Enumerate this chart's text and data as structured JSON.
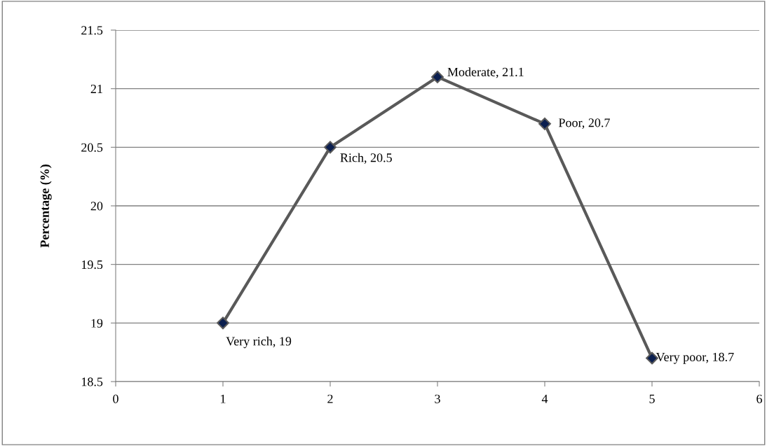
{
  "chart_data": {
    "type": "line",
    "ylabel": "Percentage (%)",
    "x": [
      1,
      2,
      3,
      4,
      5
    ],
    "series": [
      {
        "color": "#595959",
        "values": [
          19,
          20.5,
          21.1,
          20.7,
          18.7
        ]
      }
    ],
    "xlim": [
      0,
      6
    ],
    "xticks": [
      0,
      1,
      2,
      3,
      4,
      5,
      6
    ],
    "ylim": [
      18.5,
      21.5
    ],
    "yticks": [
      18.5,
      19,
      19.5,
      20,
      20.5,
      21,
      21.5
    ],
    "grid": "y",
    "marker": "diamond",
    "line_style": "solid",
    "annotations": [
      {
        "text": "Very rich, 19",
        "x": 1,
        "y": 19
      },
      {
        "text": "Rich, 20.5",
        "x": 2,
        "y": 20.5
      },
      {
        "text": "Moderate, 21.1",
        "x": 3,
        "y": 21.1
      },
      {
        "text": "Poor, 20.7",
        "x": 4,
        "y": 20.7
      },
      {
        "text": "Very poor, 18.7",
        "x": 5,
        "y": 18.7
      }
    ]
  }
}
